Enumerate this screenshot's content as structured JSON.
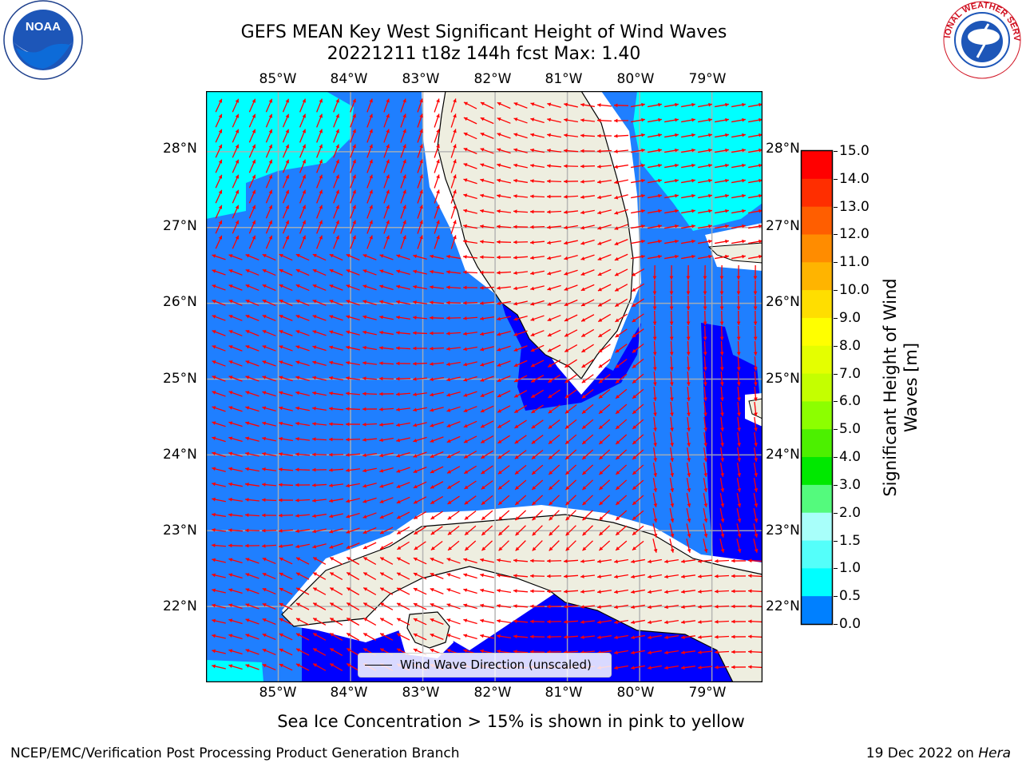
{
  "title": {
    "line1": "GEFS MEAN Key West Significant Height of Wind Waves",
    "line2": "20221211 t18z 144h fcst   Max: 1.40"
  },
  "axes": {
    "lon_labels": [
      "85°W",
      "84°W",
      "83°W",
      "82°W",
      "81°W",
      "80°W",
      "79°W"
    ],
    "lat_labels": [
      "28°N",
      "27°N",
      "26°N",
      "25°N",
      "24°N",
      "23°N",
      "22°N"
    ],
    "lon_range": [
      -86.0,
      -78.3
    ],
    "lat_range": [
      21.0,
      28.8
    ],
    "grid": true
  },
  "legend": {
    "label": "Wind Wave Direction (unscaled)",
    "arrow_color": "#ff0000"
  },
  "colorbar": {
    "title": "Significant Height of Wind Waves [m]",
    "ticks": [
      "15.0",
      "14.0",
      "13.0",
      "12.0",
      "11.0",
      "10.0",
      "9.0",
      "8.0",
      "7.0",
      "6.0",
      "5.0",
      "4.0",
      "3.0",
      "2.0",
      "1.5",
      "1.0",
      "0.5",
      "0.0"
    ],
    "colors": [
      "#ff0000",
      "#ff2e00",
      "#ff5e00",
      "#ff8c00",
      "#ffb400",
      "#ffde00",
      "#ffff00",
      "#e4ff00",
      "#c4ff00",
      "#8cff00",
      "#4cf000",
      "#00e800",
      "#54fa7d",
      "#a8fffa",
      "#54fffa",
      "#00ffff",
      "#0080ff",
      "#0000ff"
    ]
  },
  "map_colors": {
    "ocean_deep": "#0000ff",
    "ocean": "#1f7fff",
    "cyan": "#00ffff",
    "land": "#eeeee0",
    "coast_gap": "#ffffff"
  },
  "footnote": "Sea Ice Concentration > 15% is shown in pink to yellow",
  "credit_left": "NCEP/EMC/Verification Post Processing Product Generation Branch",
  "credit_date": "19 Dec 2022 on",
  "credit_host": "Hera",
  "logos": {
    "left": "NOAA",
    "right": "NATIONAL WEATHER SERVICE"
  }
}
